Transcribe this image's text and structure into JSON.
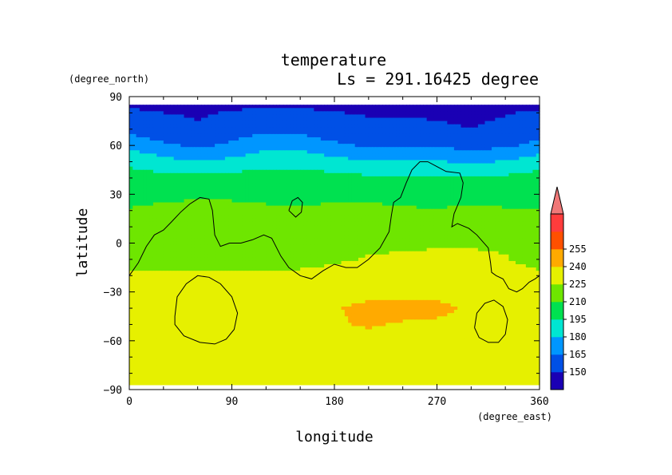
{
  "chart_data": {
    "type": "heatmap",
    "title": "temperature",
    "subtitle": "Ls = 291.16425 degree",
    "xlabel": "longitude",
    "ylabel": "latitude",
    "x_units": "(degree_east)",
    "y_units": "(degree_north)",
    "xlim": [
      0,
      360
    ],
    "ylim": [
      -90,
      90
    ],
    "data_extent_lat": [
      -87,
      85
    ],
    "x_ticks": [
      0,
      90,
      180,
      270,
      360
    ],
    "x_tick_labels": [
      "0",
      "90",
      "180",
      "270",
      "360"
    ],
    "y_ticks": [
      -90,
      -60,
      -30,
      0,
      30,
      60,
      90
    ],
    "y_tick_labels": [
      "−90",
      "−60",
      "−30",
      "0",
      "30",
      "60",
      "90"
    ],
    "colorbar": {
      "levels": [
        135,
        150,
        165,
        180,
        195,
        210,
        225,
        240,
        255,
        270
      ],
      "labels": [
        "150",
        "165",
        "180",
        "195",
        "210",
        "225",
        "240",
        "255"
      ],
      "colors": [
        "#1a00b4",
        "#0050e6",
        "#0096ff",
        "#00e6d2",
        "#00e150",
        "#6ee600",
        "#e6f000",
        "#ffaa00",
        "#ff5000",
        "#ff3c3c"
      ],
      "extend_max_color": "#f07878"
    },
    "field": {
      "lon": [
        0,
        30,
        60,
        90,
        120,
        150,
        180,
        210,
        240,
        270,
        300,
        330,
        360
      ],
      "lat": [
        85,
        70,
        60,
        50,
        40,
        30,
        20,
        10,
        0,
        -10,
        -20,
        -30,
        -40,
        -50,
        -60,
        -70,
        -80,
        -87
      ],
      "values": [
        [
          148,
          148,
          148,
          148,
          148,
          148,
          148,
          148,
          148,
          148,
          148,
          148,
          148
        ],
        [
          160,
          154,
          151,
          156,
          162,
          160,
          155,
          152,
          152,
          151,
          150,
          152,
          158
        ],
        [
          176,
          168,
          162,
          168,
          176,
          175,
          168,
          163,
          162,
          163,
          160,
          162,
          170
        ],
        [
          192,
          185,
          180,
          184,
          190,
          190,
          185,
          181,
          180,
          181,
          178,
          181,
          188
        ],
        [
          201,
          200,
          199,
          201,
          202,
          202,
          200,
          198,
          197,
          197,
          197,
          198,
          201
        ],
        [
          205,
          207,
          208,
          208,
          207,
          206,
          207,
          206,
          204,
          203,
          205,
          205,
          205
        ],
        [
          211,
          213,
          214,
          213,
          212,
          211,
          213,
          214,
          212,
          211,
          213,
          211,
          211
        ],
        [
          213,
          215,
          217,
          216,
          215,
          214,
          217,
          219,
          219,
          218,
          218,
          217,
          214
        ],
        [
          214,
          214,
          216,
          216,
          217,
          218,
          219,
          222,
          223,
          224,
          224,
          223,
          216
        ],
        [
          216,
          216,
          218,
          218,
          218,
          219,
          223,
          226,
          227,
          227,
          227,
          226,
          219
        ],
        [
          228,
          228,
          229,
          229,
          229,
          229,
          230,
          231,
          232,
          232,
          232,
          231,
          228
        ],
        [
          233,
          235,
          233,
          232,
          232,
          234,
          237,
          236,
          237,
          236,
          235,
          233,
          233
        ],
        [
          235,
          232,
          232,
          232,
          234,
          237,
          239,
          243,
          244,
          243,
          238,
          238,
          236
        ],
        [
          234,
          232,
          232,
          232,
          233,
          236,
          239,
          241,
          239,
          238,
          237,
          237,
          235
        ],
        [
          233,
          232,
          232,
          232,
          233,
          237,
          237,
          237,
          237,
          237,
          237,
          237,
          236
        ],
        [
          233,
          232,
          232,
          232,
          233,
          237,
          238,
          238,
          238,
          237,
          237,
          237,
          237
        ],
        [
          232,
          233,
          235,
          237,
          237,
          237,
          237,
          237,
          237,
          237,
          237,
          237,
          237
        ],
        [
          230,
          233,
          236,
          237,
          237,
          237,
          237,
          237,
          237,
          237,
          237,
          237,
          237
        ]
      ]
    },
    "contour_lines": [
      {
        "name": "topography-contour-north",
        "points": [
          [
            0,
            -20
          ],
          [
            8,
            -12
          ],
          [
            15,
            -2
          ],
          [
            22,
            5
          ],
          [
            30,
            8
          ],
          [
            37,
            13
          ],
          [
            45,
            19
          ],
          [
            53,
            24
          ],
          [
            62,
            28
          ],
          [
            70,
            27
          ],
          [
            73,
            20
          ],
          [
            75,
            5
          ],
          [
            80,
            -2
          ],
          [
            88,
            0
          ],
          [
            98,
            0
          ],
          [
            108,
            2
          ],
          [
            118,
            5
          ],
          [
            125,
            3
          ],
          [
            133,
            -8
          ],
          [
            140,
            -15
          ],
          [
            150,
            -20
          ],
          [
            160,
            -22
          ],
          [
            170,
            -17
          ],
          [
            180,
            -13
          ],
          [
            190,
            -15
          ],
          [
            200,
            -15
          ],
          [
            210,
            -10
          ],
          [
            220,
            -3
          ],
          [
            228,
            7
          ],
          [
            230,
            17
          ],
          [
            232,
            25
          ],
          [
            238,
            28
          ],
          [
            243,
            37
          ],
          [
            248,
            45
          ],
          [
            255,
            50
          ],
          [
            262,
            50
          ],
          [
            270,
            47
          ],
          [
            278,
            44
          ],
          [
            290,
            43
          ],
          [
            293,
            37
          ],
          [
            291,
            28
          ],
          [
            285,
            18
          ],
          [
            283,
            10
          ],
          [
            288,
            12
          ],
          [
            298,
            9
          ],
          [
            305,
            5
          ],
          [
            315,
            -3
          ],
          [
            317,
            -12
          ],
          [
            318,
            -18
          ],
          [
            322,
            -20
          ],
          [
            328,
            -22
          ],
          [
            333,
            -28
          ],
          [
            340,
            -30
          ],
          [
            345,
            -28
          ],
          [
            351,
            -24
          ],
          [
            356,
            -22
          ],
          [
            360,
            -20
          ]
        ]
      },
      {
        "name": "topography-contour-islet",
        "points": [
          [
            140,
            20
          ],
          [
            143,
            26
          ],
          [
            148,
            28
          ],
          [
            152,
            25
          ],
          [
            151,
            19
          ],
          [
            146,
            16
          ],
          [
            140,
            20
          ]
        ]
      },
      {
        "name": "topography-contour-southwest",
        "points": [
          [
            40,
            -45
          ],
          [
            42,
            -33
          ],
          [
            50,
            -25
          ],
          [
            60,
            -20
          ],
          [
            70,
            -21
          ],
          [
            80,
            -25
          ],
          [
            90,
            -33
          ],
          [
            95,
            -43
          ],
          [
            92,
            -53
          ],
          [
            85,
            -59
          ],
          [
            75,
            -62
          ],
          [
            62,
            -61
          ],
          [
            48,
            -57
          ],
          [
            40,
            -50
          ],
          [
            40,
            -45
          ]
        ]
      },
      {
        "name": "topography-contour-southeast",
        "points": [
          [
            303,
            -52
          ],
          [
            305,
            -43
          ],
          [
            312,
            -37
          ],
          [
            320,
            -35
          ],
          [
            328,
            -39
          ],
          [
            332,
            -47
          ],
          [
            330,
            -56
          ],
          [
            324,
            -61
          ],
          [
            315,
            -61
          ],
          [
            307,
            -58
          ],
          [
            303,
            -52
          ]
        ]
      }
    ]
  }
}
